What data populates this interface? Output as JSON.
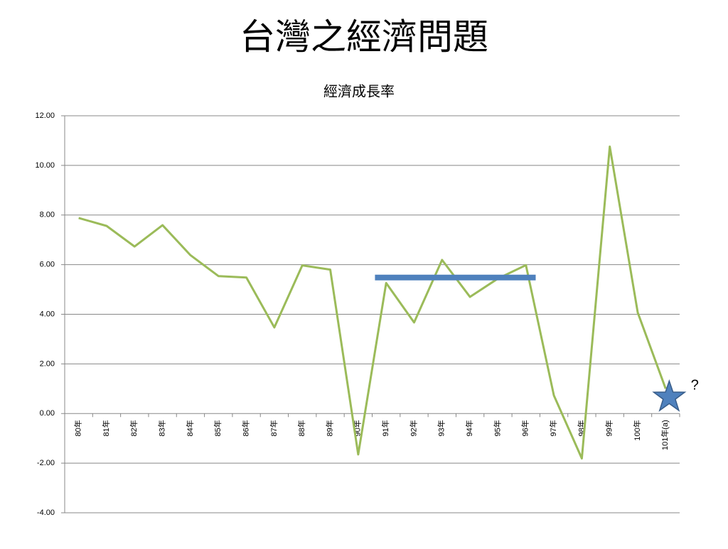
{
  "page_title": "台灣之經濟問題",
  "chart_data": {
    "type": "line",
    "title": "經濟成長率",
    "categories": [
      "80年",
      "81年",
      "82年",
      "83年",
      "84年",
      "85年",
      "86年",
      "87年",
      "88年",
      "89年",
      "90年",
      "91年",
      "92年",
      "93年",
      "94年",
      "95年",
      "96年",
      "97年",
      "98年",
      "99年",
      "100年",
      "101年(a)"
    ],
    "series": [
      {
        "name": "經濟成長率",
        "color": "#9bbb59",
        "values": [
          7.88,
          7.56,
          6.73,
          7.59,
          6.38,
          5.54,
          5.48,
          3.47,
          5.97,
          5.8,
          -1.65,
          5.26,
          3.67,
          6.19,
          4.7,
          5.44,
          5.98,
          0.73,
          -1.81,
          10.76,
          4.07,
          1.0
        ]
      }
    ],
    "ylim": [
      -4,
      12
    ],
    "yticks": [
      {
        "value": -4,
        "label": "-4.00"
      },
      {
        "value": -2,
        "label": "-2.00"
      },
      {
        "value": 0,
        "label": "0.00"
      },
      {
        "value": 2,
        "label": "2.00"
      },
      {
        "value": 4,
        "label": "4.00"
      },
      {
        "value": 6,
        "label": "6.00"
      },
      {
        "value": 8,
        "label": "8.00"
      },
      {
        "value": 10,
        "label": "10.00"
      },
      {
        "value": 12,
        "label": "12.00"
      }
    ],
    "grid": true,
    "reference_line": {
      "value": 5.48,
      "color": "#4f81bd"
    },
    "marker_color": "#4f81bd",
    "annotation": "?"
  }
}
